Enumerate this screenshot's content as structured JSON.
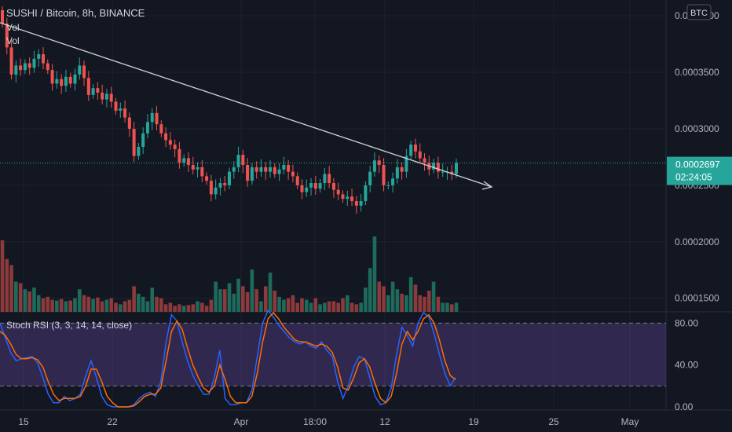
{
  "header": {
    "title": "SUSHI / Bitcoin, 8h, BINANCE",
    "vol_label_1": "Vol",
    "vol_label_2": "Vol"
  },
  "currency_badge": "BTC",
  "price_tag": {
    "price": "0.0002697",
    "countdown": "02:24:05"
  },
  "colors": {
    "background": "#131722",
    "up": "#26a69a",
    "down": "#ef5350",
    "up_volume": "#1e6b5c",
    "down_volume": "#8c3a3c",
    "accent": "#2962ff",
    "rsi_k": "#2962ff",
    "rsi_d": "#ff6d00",
    "rsi_band": "#7e57c2",
    "trendline": "#d1d4dc",
    "price_line": "#26a69a"
  },
  "chart_data": [
    {
      "type": "candlestick",
      "title": "SUSHI / Bitcoin, 8h, BINANCE",
      "y_ticks": [
        "0.0004000",
        "0.0003500",
        "0.0003000",
        "0.0002500",
        "0.0002000",
        "0.0001500"
      ],
      "ylim": [
        0.000138,
        0.000414
      ],
      "x_ticks": [
        "15",
        "22",
        "Apr",
        "18:00",
        "12",
        "19",
        "25",
        "May"
      ],
      "last_price": 0.0002697,
      "close": [
        0.000393,
        0.000372,
        0.000348,
        0.000356,
        0.000352,
        0.000358,
        0.000354,
        0.000362,
        0.000366,
        0.000358,
        0.000352,
        0.00034,
        0.000344,
        0.000338,
        0.000346,
        0.00034,
        0.000348,
        0.000356,
        0.000345,
        0.00033,
        0.000336,
        0.000332,
        0.000326,
        0.000331,
        0.000324,
        0.000316,
        0.000318,
        0.00031,
        0.0003,
        0.000276,
        0.000284,
        0.000296,
        0.000306,
        0.000314,
        0.000304,
        0.000296,
        0.00029,
        0.000286,
        0.000282,
        0.00027,
        0.000274,
        0.000268,
        0.000264,
        0.000266,
        0.000258,
        0.000254,
        0.000242,
        0.000248,
        0.000252,
        0.00025,
        0.000262,
        0.000266,
        0.000277,
        0.000268,
        0.000254,
        0.000266,
        0.000262,
        0.000266,
        0.000262,
        0.000266,
        0.00026,
        0.000264,
        0.000268,
        0.000262,
        0.000258,
        0.00025,
        0.000244,
        0.000248,
        0.000252,
        0.000247,
        0.000252,
        0.00026,
        0.000252,
        0.000246,
        0.000242,
        0.000238,
        0.00024,
        0.000236,
        0.000232,
        0.000236,
        0.00025,
        0.000262,
        0.000272,
        0.000268,
        0.00025,
        0.00025,
        0.000256,
        0.000266,
        0.000262,
        0.000276,
        0.000286,
        0.00028,
        0.000274,
        0.00027,
        0.000264,
        0.00027,
        0.000262,
        0.000262,
        0.000262,
        0.00026,
        0.00027
      ],
      "open": [
        0.000405,
        0.000393,
        0.000372,
        0.000348,
        0.000356,
        0.000352,
        0.000358,
        0.000354,
        0.000362,
        0.000366,
        0.000358,
        0.000352,
        0.00034,
        0.000344,
        0.000338,
        0.000346,
        0.00034,
        0.000348,
        0.000356,
        0.000345,
        0.00033,
        0.000336,
        0.000332,
        0.000326,
        0.000331,
        0.000324,
        0.000316,
        0.000318,
        0.00031,
        0.0003,
        0.000276,
        0.000284,
        0.000296,
        0.000306,
        0.000314,
        0.000304,
        0.000296,
        0.00029,
        0.000286,
        0.000282,
        0.00027,
        0.000274,
        0.000268,
        0.000264,
        0.000266,
        0.000258,
        0.000254,
        0.000242,
        0.000248,
        0.000252,
        0.00025,
        0.000262,
        0.000266,
        0.000277,
        0.000268,
        0.000254,
        0.000266,
        0.000262,
        0.000266,
        0.000262,
        0.000266,
        0.00026,
        0.000264,
        0.000268,
        0.000262,
        0.000258,
        0.00025,
        0.000244,
        0.000248,
        0.000252,
        0.000247,
        0.000252,
        0.00026,
        0.000252,
        0.000246,
        0.000242,
        0.000238,
        0.00024,
        0.000236,
        0.000232,
        0.000236,
        0.00025,
        0.000262,
        0.000272,
        0.000268,
        0.00025,
        0.00025,
        0.000256,
        0.000266,
        0.000262,
        0.000276,
        0.000286,
        0.00028,
        0.000274,
        0.00027,
        0.000264,
        0.00027,
        0.000262,
        0.000262,
        0.000262,
        0.00026
      ],
      "volume": [
        0.95,
        0.7,
        0.62,
        0.4,
        0.38,
        0.3,
        0.27,
        0.32,
        0.22,
        0.18,
        0.2,
        0.16,
        0.15,
        0.17,
        0.14,
        0.15,
        0.18,
        0.3,
        0.22,
        0.2,
        0.17,
        0.19,
        0.14,
        0.16,
        0.18,
        0.12,
        0.1,
        0.14,
        0.16,
        0.34,
        0.24,
        0.2,
        0.14,
        0.32,
        0.2,
        0.18,
        0.1,
        0.12,
        0.08,
        0.1,
        0.08,
        0.09,
        0.1,
        0.14,
        0.12,
        0.08,
        0.16,
        0.4,
        0.3,
        0.3,
        0.38,
        0.24,
        0.44,
        0.34,
        0.26,
        0.56,
        0.3,
        0.14,
        0.34,
        0.52,
        0.28,
        0.2,
        0.16,
        0.18,
        0.22,
        0.12,
        0.18,
        0.16,
        0.12,
        0.18,
        0.1,
        0.12,
        0.14,
        0.14,
        0.12,
        0.18,
        0.22,
        0.12,
        0.1,
        0.12,
        0.32,
        0.58,
        1.0,
        0.4,
        0.34,
        0.22,
        0.4,
        0.3,
        0.24,
        0.22,
        0.46,
        0.36,
        0.22,
        0.2,
        0.28,
        0.4,
        0.2,
        0.12,
        0.12,
        0.1,
        0.12
      ]
    },
    {
      "type": "line",
      "title": "Stoch RSI (3, 3, 14, 14, close)",
      "y_ticks": [
        "80.00",
        "40.00",
        "0.00"
      ],
      "ylim": [
        -3,
        90
      ],
      "band": [
        20,
        80
      ],
      "series": [
        {
          "values": [
            80,
            66,
            52,
            44,
            46,
            47,
            48,
            42,
            28,
            12,
            4,
            4,
            10,
            6,
            8,
            12,
            30,
            44,
            28,
            10,
            2,
            0,
            0,
            0,
            0,
            2,
            8,
            12,
            14,
            10,
            24,
            62,
            88,
            82,
            62,
            44,
            30,
            20,
            12,
            12,
            28,
            54,
            8,
            2,
            2,
            4,
            4,
            16,
            48,
            80,
            92,
            86,
            78,
            72,
            66,
            62,
            60,
            62,
            58,
            56,
            62,
            54,
            48,
            24,
            8,
            20,
            38,
            48,
            46,
            28,
            10,
            2,
            4,
            18,
            50,
            76,
            68,
            58,
            80,
            90,
            86,
            70,
            50,
            32,
            20,
            28
          ]
        },
        {
          "values": [
            72,
            68,
            60,
            50,
            46,
            46,
            47,
            45,
            38,
            24,
            12,
            6,
            8,
            8,
            8,
            10,
            20,
            36,
            36,
            24,
            10,
            4,
            0,
            0,
            0,
            1,
            5,
            10,
            12,
            12,
            18,
            44,
            72,
            82,
            74,
            56,
            40,
            28,
            18,
            14,
            20,
            40,
            26,
            10,
            4,
            4,
            4,
            10,
            32,
            62,
            84,
            90,
            84,
            76,
            70,
            64,
            62,
            62,
            60,
            58,
            60,
            58,
            52,
            38,
            18,
            16,
            28,
            42,
            46,
            38,
            22,
            8,
            4,
            10,
            32,
            60,
            72,
            64,
            72,
            84,
            88,
            80,
            64,
            44,
            30,
            26
          ]
        }
      ]
    }
  ]
}
